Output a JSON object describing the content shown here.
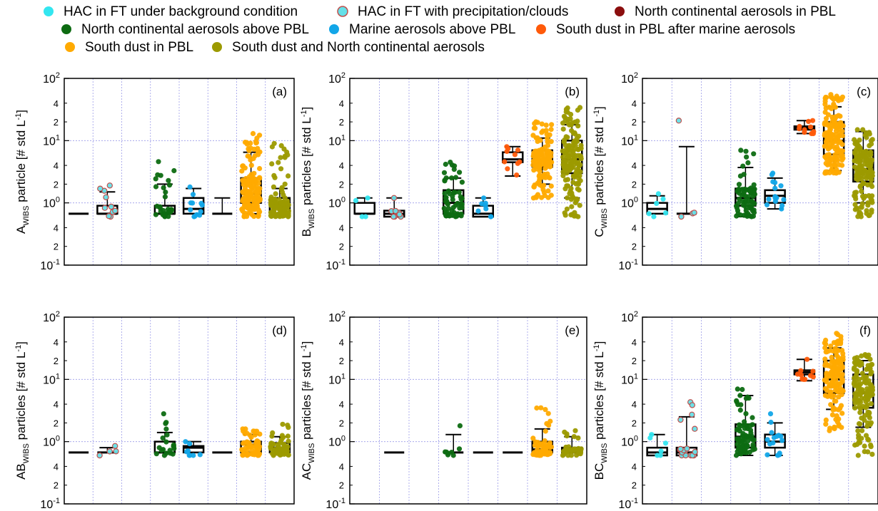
{
  "legend": {
    "items": [
      {
        "label": "HAC in FT under background condition",
        "color": "#33e6f0",
        "edge": "#33e6f0"
      },
      {
        "label": "HAC in FT with precipitation/clouds",
        "color": "#66e0e8",
        "edge": "#c0504d"
      },
      {
        "label": "North continental aerosols in PBL",
        "color": "#8b0e0e",
        "edge": "#8b0e0e"
      },
      {
        "label": "North continental aerosols above PBL",
        "color": "#0d6b12",
        "edge": "#0d6b12"
      },
      {
        "label": "Marine aerosols above PBL",
        "color": "#12a6e8",
        "edge": "#12a6e8"
      },
      {
        "label": "South dust in PBL after marine aerosols",
        "color": "#ff5a0a",
        "edge": "#ff5a0a"
      },
      {
        "label": "South dust in PBL",
        "color": "#ffaa00",
        "edge": "#ffaa00"
      },
      {
        "label": "South dust and North continental aerosols",
        "color": "#9c9a00",
        "edge": "#9c9a00"
      }
    ]
  },
  "chart_data": [
    {
      "type": "box",
      "tag": "(a)",
      "ylabel": {
        "main": "A",
        "sub": "WIBS",
        "rest": " particle  [# std L",
        "unit_sup": "-1",
        "close": "]"
      },
      "yscale": "log",
      "ylim": [
        0.1,
        100
      ],
      "grid": true,
      "boxes": [
        {
          "group": 0,
          "median": 0.67,
          "q1": 0.67,
          "q3": 0.67,
          "wlo": 0.67,
          "whi": 0.67,
          "n": 0
        },
        {
          "group": 1,
          "median": 0.67,
          "q1": 0.67,
          "q3": 0.9,
          "wlo": 0.67,
          "whi": 1.5,
          "n": 10,
          "pmin": 0.6,
          "pmax": 1.9
        },
        {
          "group": 3,
          "median": 0.67,
          "q1": 0.67,
          "q3": 0.9,
          "wlo": 0.67,
          "whi": 2.0,
          "n": 30,
          "pmin": 0.6,
          "pmax": 4.6
        },
        {
          "group": 4,
          "median": 0.8,
          "q1": 0.67,
          "q3": 1.2,
          "wlo": 0.67,
          "whi": 1.7,
          "n": 12,
          "pmin": 0.6,
          "pmax": 1.8
        },
        {
          "group": 5,
          "median": 0.67,
          "q1": 0.67,
          "q3": 0.67,
          "wlo": 0.67,
          "whi": 1.2,
          "n": 0
        },
        {
          "group": 6,
          "median": 1.4,
          "q1": 1.0,
          "q3": 2.5,
          "wlo": 0.67,
          "whi": 6.5,
          "n": 150,
          "pmin": 0.6,
          "pmax": 13
        },
        {
          "group": 7,
          "median": 0.9,
          "q1": 0.67,
          "q3": 1.2,
          "wlo": 0.67,
          "whi": 1.7,
          "n": 120,
          "pmin": 0.6,
          "pmax": 9
        }
      ]
    },
    {
      "type": "box",
      "tag": "(b)",
      "ylabel": {
        "main": "B",
        "sub": "WIBS",
        "rest": " particles  [# std L",
        "unit_sup": "-1",
        "close": "]"
      },
      "yscale": "log",
      "ylim": [
        0.1,
        100
      ],
      "grid": true,
      "boxes": [
        {
          "group": 0,
          "median": 0.67,
          "q1": 0.67,
          "q3": 1.0,
          "wlo": 0.67,
          "whi": 1.2,
          "n": 4,
          "pmin": 0.6,
          "pmax": 1.2
        },
        {
          "group": 1,
          "median": 0.67,
          "q1": 0.6,
          "q3": 0.75,
          "wlo": 0.6,
          "whi": 1.2,
          "n": 8,
          "pmin": 0.6,
          "pmax": 1.2
        },
        {
          "group": 3,
          "median": 1.0,
          "q1": 0.67,
          "q3": 1.6,
          "wlo": 0.6,
          "whi": 2.5,
          "n": 60,
          "pmin": 0.6,
          "pmax": 4.5
        },
        {
          "group": 4,
          "median": 0.67,
          "q1": 0.6,
          "q3": 0.9,
          "wlo": 0.6,
          "whi": 1.2,
          "n": 8,
          "pmin": 0.6,
          "pmax": 1.2
        },
        {
          "group": 5,
          "median": 5.0,
          "q1": 4.5,
          "q3": 6.5,
          "wlo": 2.7,
          "whi": 8.0,
          "n": 10,
          "pmin": 2.8,
          "pmax": 8
        },
        {
          "group": 6,
          "median": 5.0,
          "q1": 3.8,
          "q3": 7.0,
          "wlo": 2.0,
          "whi": 11,
          "n": 150,
          "pmin": 1.2,
          "pmax": 20
        },
        {
          "group": 7,
          "median": 5.0,
          "q1": 3.0,
          "q3": 10,
          "wlo": 1.2,
          "whi": 18,
          "n": 150,
          "pmin": 0.6,
          "pmax": 34
        }
      ]
    },
    {
      "type": "box",
      "tag": "(c)",
      "ylabel": {
        "main": "C",
        "sub": "WIBS",
        "rest": " particles  [# std L",
        "unit_sup": "-1",
        "close": "]"
      },
      "yscale": "log",
      "ylim": [
        0.1,
        100
      ],
      "grid": true,
      "boxes": [
        {
          "group": 0,
          "median": 0.8,
          "q1": 0.67,
          "q3": 1.0,
          "wlo": 0.67,
          "whi": 1.3,
          "n": 6,
          "pmin": 0.6,
          "pmax": 1.4
        },
        {
          "group": 1,
          "median": 0.67,
          "q1": 0.67,
          "q3": 0.67,
          "wlo": 0.67,
          "whi": 8,
          "n": 4,
          "pmin": 0.6,
          "pmax": 21
        },
        {
          "group": 3,
          "median": 1.2,
          "q1": 0.9,
          "q3": 1.7,
          "wlo": 0.6,
          "whi": 3.7,
          "n": 70,
          "pmin": 0.6,
          "pmax": 7
        },
        {
          "group": 4,
          "median": 1.3,
          "q1": 1.0,
          "q3": 1.6,
          "wlo": 0.8,
          "whi": 2.5,
          "n": 15,
          "pmin": 0.8,
          "pmax": 3
        },
        {
          "group": 5,
          "median": 16,
          "q1": 15,
          "q3": 17,
          "wlo": 13,
          "whi": 21,
          "n": 10,
          "pmin": 13,
          "pmax": 21
        },
        {
          "group": 6,
          "median": 10,
          "q1": 6,
          "q3": 20,
          "wlo": 3.3,
          "whi": 35,
          "n": 150,
          "pmin": 3,
          "pmax": 55
        },
        {
          "group": 7,
          "median": 3.5,
          "q1": 2.2,
          "q3": 7,
          "wlo": 1.0,
          "whi": 14,
          "n": 150,
          "pmin": 0.6,
          "pmax": 15
        }
      ]
    },
    {
      "type": "box",
      "tag": "(d)",
      "ylabel": {
        "main": "AB",
        "sub": "WIBS",
        "rest": " particles  [# std L",
        "unit_sup": "-1",
        "close": "]"
      },
      "yscale": "log",
      "ylim": [
        0.1,
        100
      ],
      "grid": true,
      "boxes": [
        {
          "group": 0,
          "median": 0.67,
          "q1": 0.67,
          "q3": 0.67,
          "wlo": 0.67,
          "whi": 0.67,
          "n": 0
        },
        {
          "group": 1,
          "median": 0.67,
          "q1": 0.67,
          "q3": 0.67,
          "wlo": 0.67,
          "whi": 0.8,
          "n": 4,
          "pmin": 0.6,
          "pmax": 0.85
        },
        {
          "group": 3,
          "median": 0.67,
          "q1": 0.67,
          "q3": 1.0,
          "wlo": 0.67,
          "whi": 1.4,
          "n": 20,
          "pmin": 0.6,
          "pmax": 2.8
        },
        {
          "group": 4,
          "median": 0.8,
          "q1": 0.67,
          "q3": 0.85,
          "wlo": 0.67,
          "whi": 1.0,
          "n": 8,
          "pmin": 0.6,
          "pmax": 1.0
        },
        {
          "group": 5,
          "median": 0.67,
          "q1": 0.67,
          "q3": 0.67,
          "wlo": 0.67,
          "whi": 0.67,
          "n": 0
        },
        {
          "group": 6,
          "median": 0.9,
          "q1": 0.67,
          "q3": 1.0,
          "wlo": 0.67,
          "whi": 1.3,
          "n": 60,
          "pmin": 0.6,
          "pmax": 1.6
        },
        {
          "group": 7,
          "median": 0.8,
          "q1": 0.67,
          "q3": 0.95,
          "wlo": 0.67,
          "whi": 1.2,
          "n": 60,
          "pmin": 0.6,
          "pmax": 1.9
        }
      ]
    },
    {
      "type": "box",
      "tag": "(e)",
      "ylabel": {
        "main": "AC",
        "sub": "WIBS",
        "rest": " particles  [# std L",
        "unit_sup": "-1",
        "close": "]"
      },
      "yscale": "log",
      "ylim": [
        0.1,
        100
      ],
      "grid": true,
      "boxes": [
        {
          "group": 1,
          "median": 0.67,
          "q1": 0.67,
          "q3": 0.67,
          "wlo": 0.67,
          "whi": 0.67,
          "n": 0
        },
        {
          "group": 3,
          "median": 0.67,
          "q1": 0.67,
          "q3": 0.67,
          "wlo": 0.67,
          "whi": 1.3,
          "n": 8,
          "pmin": 0.6,
          "pmax": 1.8
        },
        {
          "group": 4,
          "median": 0.67,
          "q1": 0.67,
          "q3": 0.67,
          "wlo": 0.67,
          "whi": 0.67,
          "n": 0
        },
        {
          "group": 5,
          "median": 0.67,
          "q1": 0.67,
          "q3": 0.67,
          "wlo": 0.67,
          "whi": 0.67,
          "n": 0
        },
        {
          "group": 6,
          "median": 0.75,
          "q1": 0.67,
          "q3": 1.0,
          "wlo": 0.67,
          "whi": 1.6,
          "n": 60,
          "pmin": 0.6,
          "pmax": 3.5
        },
        {
          "group": 7,
          "median": 0.67,
          "q1": 0.67,
          "q3": 0.8,
          "wlo": 0.67,
          "whi": 1.2,
          "n": 40,
          "pmin": 0.6,
          "pmax": 1.5
        }
      ]
    },
    {
      "type": "box",
      "tag": "(f)",
      "ylabel": {
        "main": "BC",
        "sub": "WIBS",
        "rest": " particles  [# std L",
        "unit_sup": "-1",
        "close": "]"
      },
      "yscale": "log",
      "ylim": [
        0.1,
        100
      ],
      "grid": true,
      "boxes": [
        {
          "group": 0,
          "median": 0.67,
          "q1": 0.6,
          "q3": 0.8,
          "wlo": 0.6,
          "whi": 1.3,
          "n": 6,
          "pmin": 0.6,
          "pmax": 1.3
        },
        {
          "group": 1,
          "median": 0.67,
          "q1": 0.6,
          "q3": 0.8,
          "wlo": 0.6,
          "whi": 2.5,
          "n": 20,
          "pmin": 0.6,
          "pmax": 4.3
        },
        {
          "group": 3,
          "median": 1.2,
          "q1": 0.8,
          "q3": 1.9,
          "wlo": 0.6,
          "whi": 5.5,
          "n": 80,
          "pmin": 0.6,
          "pmax": 7
        },
        {
          "group": 4,
          "median": 1.0,
          "q1": 0.8,
          "q3": 1.3,
          "wlo": 0.6,
          "whi": 2.0,
          "n": 15,
          "pmin": 0.6,
          "pmax": 2.8
        },
        {
          "group": 5,
          "median": 13,
          "q1": 12,
          "q3": 14,
          "wlo": 9.5,
          "whi": 21,
          "n": 10,
          "pmin": 10,
          "pmax": 21
        },
        {
          "group": 6,
          "median": 10,
          "q1": 6,
          "q3": 20,
          "wlo": 3.3,
          "whi": 32,
          "n": 150,
          "pmin": 1.5,
          "pmax": 55
        },
        {
          "group": 7,
          "median": 6,
          "q1": 3.5,
          "q3": 12,
          "wlo": 1.7,
          "whi": 20,
          "n": 150,
          "pmin": 0.6,
          "pmax": 25
        }
      ]
    }
  ],
  "axis": {
    "major_ticks": [
      {
        "base": "10",
        "exp": "-1",
        "value": 0.1
      },
      {
        "base": "10",
        "exp": "0",
        "value": 1
      },
      {
        "base": "10",
        "exp": "1",
        "value": 10
      },
      {
        "base": "10",
        "exp": "2",
        "value": 100
      }
    ],
    "minor_ticks": [
      {
        "label": "2",
        "value": 0.2
      },
      {
        "label": "4",
        "value": 0.4
      },
      {
        "label": "2",
        "value": 2
      },
      {
        "label": "4",
        "value": 4
      },
      {
        "label": "2",
        "value": 20
      },
      {
        "label": "4",
        "value": 40
      }
    ]
  }
}
